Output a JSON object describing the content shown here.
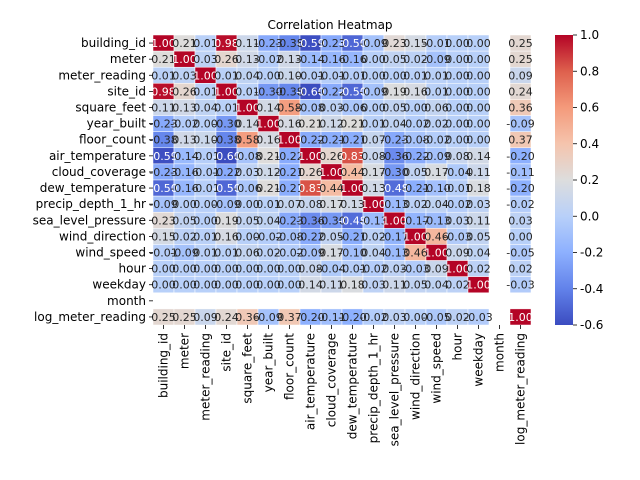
{
  "chart_data": {
    "type": "heatmap",
    "title": "Correlation Heatmap",
    "variables": [
      "building_id",
      "meter",
      "meter_reading",
      "site_id",
      "square_feet",
      "year_built",
      "floor_count",
      "air_temperature",
      "cloud_coverage",
      "dew_temperature",
      "precip_depth_1_hr",
      "sea_level_pressure",
      "wind_direction",
      "wind_speed",
      "hour",
      "weekday",
      "month",
      "log_meter_reading"
    ],
    "matrix": [
      [
        1.0,
        0.21,
        0.01,
        0.98,
        0.11,
        -0.23,
        -0.38,
        -0.59,
        -0.23,
        -0.5,
        -0.09,
        0.23,
        0.15,
        -0.01,
        0.0,
        0.0,
        null,
        0.25
      ],
      [
        0.21,
        1.0,
        0.03,
        0.26,
        0.13,
        -0.02,
        0.13,
        -0.14,
        -0.16,
        -0.16,
        0.0,
        0.05,
        0.02,
        -0.09,
        0.0,
        0.0,
        null,
        0.25
      ],
      [
        0.01,
        0.03,
        1.0,
        0.01,
        0.04,
        0.0,
        0.1,
        -0.01,
        -0.01,
        -0.01,
        0.0,
        0.0,
        0.01,
        0.01,
        0.0,
        0.0,
        null,
        0.09
      ],
      [
        0.98,
        0.26,
        0.01,
        1.0,
        0.01,
        -0.3,
        -0.38,
        -0.6,
        -0.22,
        -0.5,
        -0.09,
        0.19,
        0.16,
        0.01,
        0.0,
        0.0,
        null,
        0.24
      ],
      [
        0.11,
        0.13,
        0.04,
        0.01,
        1.0,
        0.14,
        0.58,
        -0.08,
        0.03,
        -0.06,
        0.0,
        0.05,
        0.0,
        0.06,
        0.0,
        0.0,
        null,
        0.36
      ],
      [
        -0.23,
        -0.02,
        0.0,
        -0.3,
        0.14,
        1.0,
        0.16,
        0.21,
        0.12,
        0.21,
        0.01,
        0.04,
        -0.02,
        0.02,
        0.0,
        0.0,
        null,
        -0.09
      ],
      [
        -0.38,
        0.13,
        0.1,
        -0.38,
        0.58,
        0.16,
        1.0,
        -0.22,
        -0.21,
        -0.21,
        0.07,
        -0.23,
        -0.08,
        -0.02,
        0.0,
        0.0,
        null,
        0.37
      ],
      [
        -0.59,
        -0.14,
        -0.01,
        -0.6,
        -0.08,
        0.21,
        -0.22,
        1.0,
        0.26,
        0.83,
        0.08,
        -0.36,
        -0.22,
        -0.09,
        0.08,
        0.14,
        null,
        -0.2
      ],
      [
        -0.23,
        -0.16,
        -0.01,
        -0.22,
        0.03,
        0.12,
        -0.21,
        0.26,
        1.0,
        0.44,
        0.17,
        -0.3,
        0.05,
        0.17,
        -0.04,
        0.11,
        null,
        -0.11
      ],
      [
        -0.5,
        -0.16,
        -0.01,
        -0.5,
        -0.06,
        0.21,
        -0.21,
        0.83,
        0.44,
        1.0,
        0.13,
        -0.48,
        -0.21,
        -0.1,
        -0.01,
        0.18,
        null,
        -0.2
      ],
      [
        -0.09,
        0.0,
        0.0,
        -0.09,
        0.0,
        0.01,
        0.07,
        0.08,
        0.17,
        0.13,
        1.0,
        -0.13,
        0.02,
        0.04,
        -0.02,
        0.03,
        null,
        -0.02
      ],
      [
        0.23,
        0.05,
        0.0,
        0.19,
        0.05,
        0.04,
        -0.23,
        -0.36,
        -0.3,
        -0.48,
        -0.13,
        1.0,
        -0.17,
        -0.13,
        0.03,
        0.11,
        null,
        0.03
      ],
      [
        0.15,
        0.02,
        0.01,
        0.16,
        0.0,
        -0.02,
        -0.08,
        -0.22,
        0.05,
        -0.21,
        0.02,
        -0.17,
        1.0,
        0.46,
        -0.03,
        0.05,
        null,
        -0.0
      ],
      [
        -0.01,
        -0.09,
        0.01,
        0.01,
        0.06,
        0.02,
        -0.02,
        -0.09,
        0.17,
        -0.1,
        0.04,
        -0.13,
        0.46,
        1.0,
        0.09,
        0.04,
        null,
        -0.05
      ],
      [
        0.0,
        0.0,
        0.0,
        0.0,
        0.0,
        0.0,
        0.0,
        0.08,
        -0.04,
        -0.01,
        -0.02,
        0.03,
        -0.03,
        0.09,
        1.0,
        0.02,
        null,
        0.02
      ],
      [
        0.0,
        0.0,
        0.0,
        0.0,
        0.0,
        0.0,
        0.0,
        0.14,
        0.11,
        0.18,
        0.03,
        0.11,
        0.05,
        0.04,
        0.02,
        1.0,
        null,
        -0.03
      ],
      [
        null,
        null,
        null,
        null,
        null,
        null,
        null,
        null,
        null,
        null,
        null,
        null,
        null,
        null,
        null,
        null,
        null,
        null
      ],
      [
        0.25,
        0.25,
        0.09,
        0.24,
        0.36,
        -0.09,
        0.37,
        -0.2,
        -0.11,
        -0.2,
        -0.02,
        0.03,
        -0.0,
        -0.05,
        0.02,
        -0.03,
        null,
        1.0
      ]
    ],
    "value_format": "2 decimals",
    "colorbar": {
      "colormap": "coolwarm",
      "min": -0.6,
      "max": 1.0,
      "ticks": [
        "-0.6",
        "-0.4",
        "-0.2",
        "0.0",
        "0.2",
        "0.4",
        "0.6",
        "0.8",
        "1.0"
      ],
      "position": "right"
    },
    "grid": false,
    "cell_border": "white"
  }
}
